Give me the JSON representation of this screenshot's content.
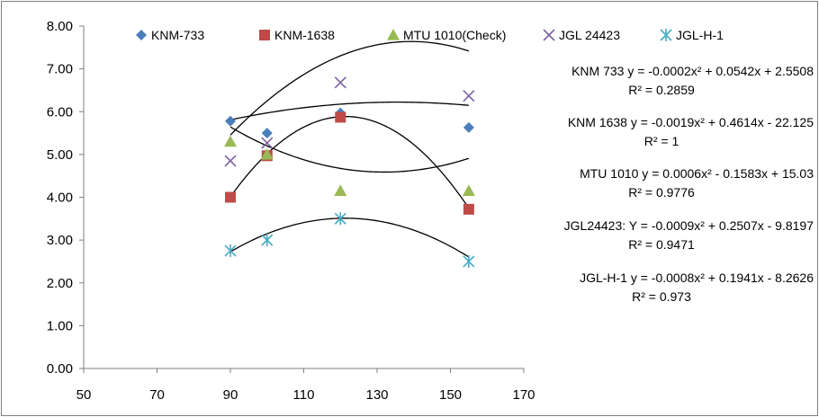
{
  "chart_data": {
    "type": "scatter",
    "title": "",
    "xlabel": "",
    "ylabel": "",
    "xlim": [
      50,
      170
    ],
    "ylim": [
      0,
      8
    ],
    "x_ticks": [
      "50",
      "70",
      "90",
      "110",
      "130",
      "150",
      "170"
    ],
    "y_ticks": [
      "0.00",
      "1.00",
      "2.00",
      "3.00",
      "4.00",
      "5.00",
      "6.00",
      "7.00",
      "8.00"
    ],
    "grid": false,
    "legend_position": "top",
    "series": [
      {
        "name": "KNM-733",
        "marker": "diamond",
        "color": "#4a7ebb",
        "x": [
          90,
          100,
          120,
          155
        ],
        "y": [
          5.78,
          5.5,
          5.97,
          5.63
        ],
        "trendline": {
          "label": "KNM 733",
          "coef": [
            -0.0002,
            0.0542,
            2.5508
          ],
          "equation": "y = -0.0002x² + 0.0542x + 2.5508",
          "r2": "R² = 0.2859"
        }
      },
      {
        "name": "KNM-1638",
        "marker": "square",
        "color": "#be4b48",
        "x": [
          90,
          100,
          120,
          155
        ],
        "y": [
          4.0,
          4.97,
          5.87,
          3.72
        ],
        "trendline": {
          "label": "KNM 1638",
          "coef": [
            -0.0019,
            0.4614,
            -22.125
          ],
          "equation": "y = -0.0019x² + 0.4614x - 22.125",
          "r2": "R² = 1"
        }
      },
      {
        "name": "MTU 1010(Check)",
        "marker": "triangle",
        "color": "#98b954",
        "x": [
          90,
          100,
          120,
          155
        ],
        "y": [
          5.3,
          5.0,
          4.15,
          4.15
        ],
        "trendline": {
          "label": "MTU 1010",
          "coef": [
            0.0006,
            -0.1583,
            15.03
          ],
          "equation": "y = 0.0006x² - 0.1583x + 15.03",
          "r2": "R² = 0.9776"
        }
      },
      {
        "name": "JGL 24423",
        "marker": "x",
        "color": "#7d60a0",
        "x": [
          90,
          100,
          120,
          155
        ],
        "y": [
          4.85,
          5.27,
          6.68,
          6.37
        ],
        "trendline": {
          "label": "JGL24423:",
          "coef": [
            -0.0009,
            0.2507,
            -9.8197
          ],
          "equation": "Y = -0.0009x² + 0.2507x - 9.8197",
          "r2": "R² = 0.9471"
        }
      },
      {
        "name": "JGL-H-1",
        "marker": "star",
        "color": "#46aac5",
        "x": [
          90,
          100,
          120,
          155
        ],
        "y": [
          2.75,
          3.0,
          3.5,
          2.5
        ],
        "trendline": {
          "label": "JGL-H-1",
          "coef": [
            -0.0008,
            0.1941,
            -8.2626
          ],
          "equation": "y = -0.0008x² + 0.1941x - 8.2626",
          "r2": "R² = 0.973"
        }
      }
    ]
  }
}
